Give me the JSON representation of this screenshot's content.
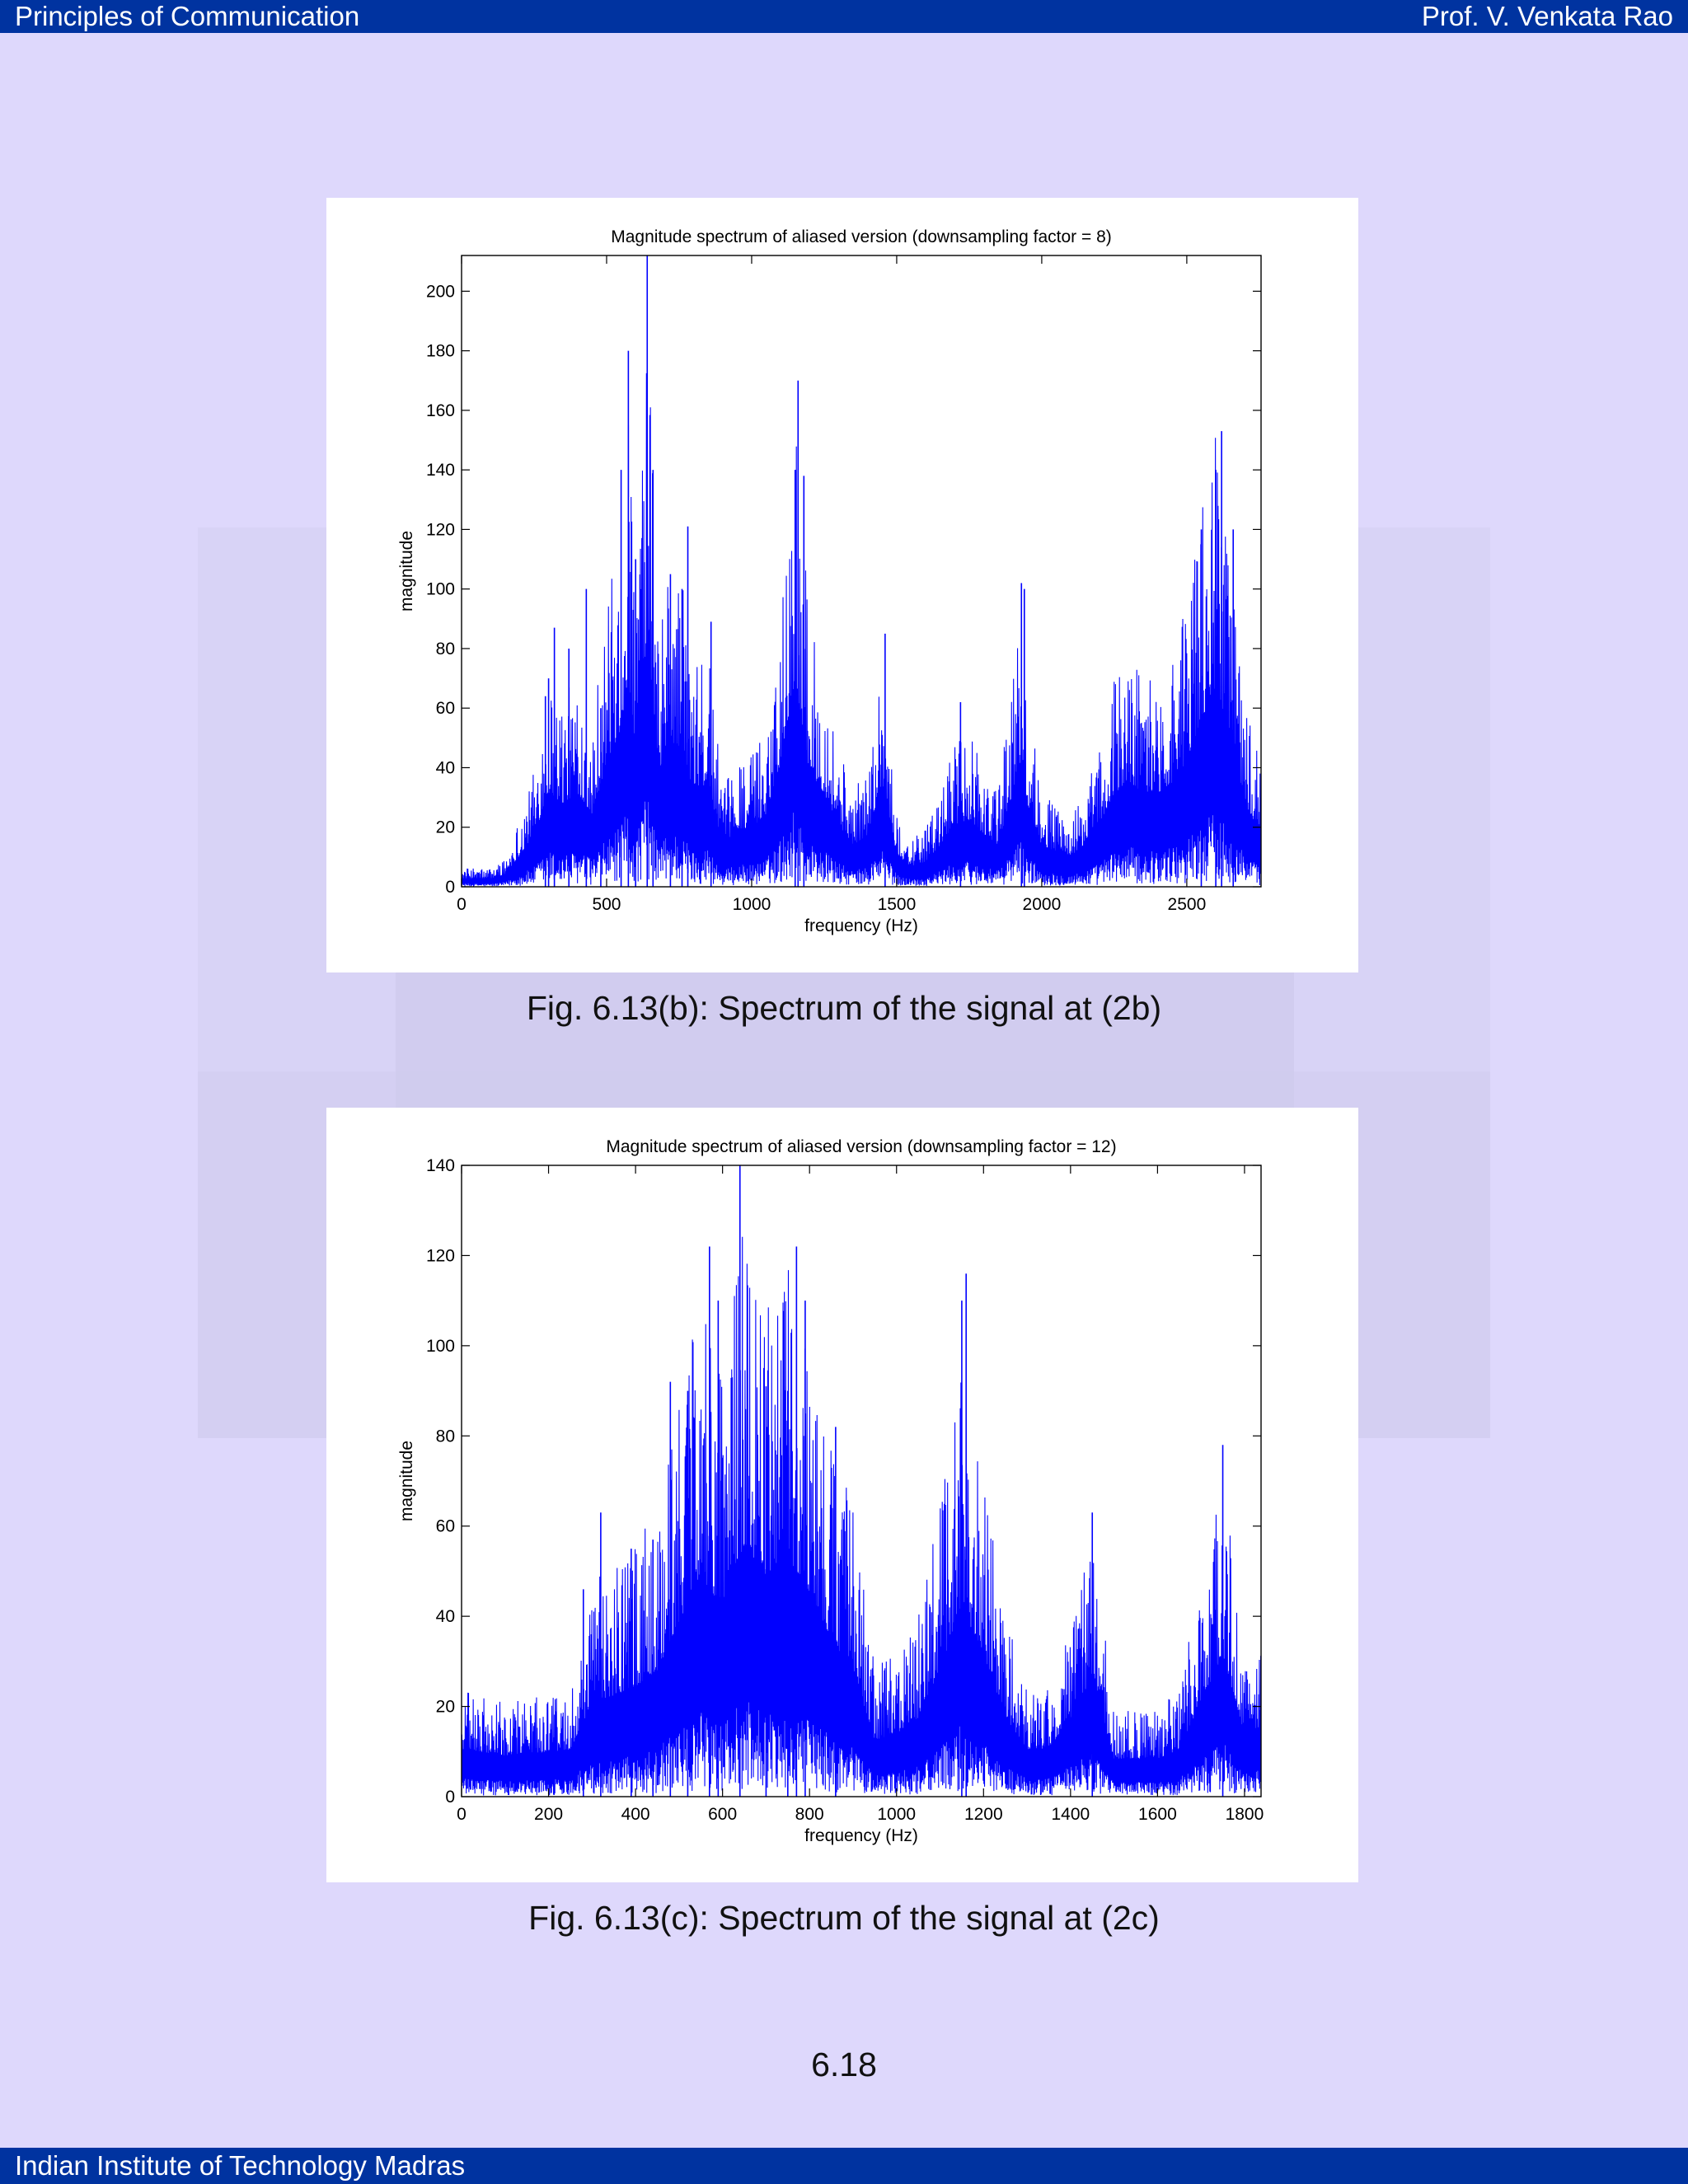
{
  "header": {
    "left_title": "Principles of Communication",
    "right_title": "Prof. V. Venkata Rao"
  },
  "footer": {
    "institution": "Indian Institute of Technology Madras"
  },
  "page_number": "6.18",
  "colors": {
    "bar": "#0033a0",
    "page_background": "#ded8fc",
    "plot_line": "#0000ff"
  },
  "captions": {
    "fig_b": "Fig. 6.13(b): Spectrum of the signal at (2b)",
    "fig_c": "Fig. 6.13(c): Spectrum of the signal at (2c)"
  },
  "chart_data": [
    {
      "type": "line",
      "title": "Magnitude spectrum of aliased version (downsampling factor = 8)",
      "xlabel": "frequency (Hz)",
      "ylabel": "magnitude",
      "xlim": [
        0,
        2756
      ],
      "ylim": [
        0,
        212
      ],
      "xticks": [
        0,
        500,
        1000,
        1500,
        2000,
        2500
      ],
      "yticks": [
        0,
        20,
        40,
        60,
        80,
        100,
        120,
        140,
        160,
        180,
        200
      ],
      "grid": false,
      "legend": "none",
      "envelope": [
        [
          0,
          4
        ],
        [
          100,
          4
        ],
        [
          150,
          6
        ],
        [
          200,
          15
        ],
        [
          250,
          25
        ],
        [
          300,
          45
        ],
        [
          350,
          40
        ],
        [
          400,
          45
        ],
        [
          450,
          35
        ],
        [
          500,
          60
        ],
        [
          550,
          75
        ],
        [
          575,
          100
        ],
        [
          600,
          65
        ],
        [
          640,
          120
        ],
        [
          680,
          55
        ],
        [
          720,
          70
        ],
        [
          760,
          65
        ],
        [
          800,
          45
        ],
        [
          850,
          50
        ],
        [
          900,
          20
        ],
        [
          950,
          28
        ],
        [
          1000,
          28
        ],
        [
          1050,
          35
        ],
        [
          1100,
          60
        ],
        [
          1150,
          100
        ],
        [
          1200,
          55
        ],
        [
          1250,
          45
        ],
        [
          1300,
          30
        ],
        [
          1350,
          20
        ],
        [
          1400,
          25
        ],
        [
          1450,
          50
        ],
        [
          1500,
          15
        ],
        [
          1550,
          10
        ],
        [
          1600,
          12
        ],
        [
          1650,
          20
        ],
        [
          1700,
          30
        ],
        [
          1750,
          32
        ],
        [
          1800,
          25
        ],
        [
          1850,
          20
        ],
        [
          1900,
          45
        ],
        [
          1925,
          60
        ],
        [
          1950,
          40
        ],
        [
          2000,
          20
        ],
        [
          2050,
          17
        ],
        [
          2100,
          15
        ],
        [
          2150,
          20
        ],
        [
          2200,
          30
        ],
        [
          2250,
          45
        ],
        [
          2300,
          50
        ],
        [
          2350,
          45
        ],
        [
          2400,
          45
        ],
        [
          2450,
          50
        ],
        [
          2500,
          60
        ],
        [
          2550,
          80
        ],
        [
          2600,
          95
        ],
        [
          2650,
          75
        ],
        [
          2700,
          40
        ],
        [
          2756,
          25
        ]
      ],
      "peaks": [
        [
          289,
          64
        ],
        [
          300,
          70
        ],
        [
          320,
          87
        ],
        [
          370,
          80
        ],
        [
          430,
          100
        ],
        [
          480,
          60
        ],
        [
          550,
          140
        ],
        [
          575,
          180
        ],
        [
          600,
          110
        ],
        [
          640,
          212
        ],
        [
          660,
          140
        ],
        [
          720,
          105
        ],
        [
          760,
          100
        ],
        [
          780,
          121
        ],
        [
          860,
          89
        ],
        [
          1150,
          140
        ],
        [
          1160,
          170
        ],
        [
          1180,
          138
        ],
        [
          1460,
          85
        ],
        [
          1720,
          62
        ],
        [
          1930,
          102
        ],
        [
          1940,
          100
        ],
        [
          2550,
          120
        ],
        [
          2600,
          140
        ],
        [
          2620,
          153
        ],
        [
          2660,
          120
        ]
      ]
    },
    {
      "type": "line",
      "title": "Magnitude spectrum of aliased version (downsampling factor = 12)",
      "xlabel": "frequency (Hz)",
      "ylabel": "magnitude",
      "xlim": [
        0,
        1838
      ],
      "ylim": [
        0,
        140
      ],
      "xticks": [
        0,
        200,
        400,
        600,
        800,
        1000,
        1200,
        1400,
        1600,
        1800
      ],
      "yticks": [
        0,
        20,
        40,
        60,
        80,
        100,
        120,
        140
      ],
      "grid": false,
      "legend": "none",
      "envelope": [
        [
          0,
          15
        ],
        [
          50,
          14
        ],
        [
          100,
          13
        ],
        [
          150,
          14
        ],
        [
          200,
          14
        ],
        [
          250,
          15
        ],
        [
          300,
          30
        ],
        [
          350,
          32
        ],
        [
          400,
          35
        ],
        [
          450,
          40
        ],
        [
          500,
          55
        ],
        [
          550,
          70
        ],
        [
          600,
          60
        ],
        [
          650,
          80
        ],
        [
          700,
          70
        ],
        [
          750,
          75
        ],
        [
          800,
          65
        ],
        [
          850,
          50
        ],
        [
          900,
          40
        ],
        [
          950,
          18
        ],
        [
          1000,
          20
        ],
        [
          1050,
          25
        ],
        [
          1100,
          40
        ],
        [
          1150,
          60
        ],
        [
          1200,
          45
        ],
        [
          1250,
          25
        ],
        [
          1300,
          15
        ],
        [
          1350,
          15
        ],
        [
          1400,
          25
        ],
        [
          1450,
          38
        ],
        [
          1500,
          12
        ],
        [
          1550,
          12
        ],
        [
          1600,
          12
        ],
        [
          1650,
          15
        ],
        [
          1700,
          30
        ],
        [
          1750,
          45
        ],
        [
          1800,
          20
        ],
        [
          1838,
          22
        ]
      ],
      "peaks": [
        [
          280,
          46
        ],
        [
          320,
          63
        ],
        [
          390,
          55
        ],
        [
          440,
          57
        ],
        [
          480,
          92
        ],
        [
          520,
          90
        ],
        [
          570,
          122
        ],
        [
          590,
          110
        ],
        [
          640,
          140
        ],
        [
          700,
          91
        ],
        [
          750,
          90
        ],
        [
          770,
          122
        ],
        [
          790,
          110
        ],
        [
          860,
          82
        ],
        [
          1150,
          110
        ],
        [
          1160,
          116
        ],
        [
          1450,
          63
        ],
        [
          1750,
          78
        ]
      ]
    }
  ]
}
